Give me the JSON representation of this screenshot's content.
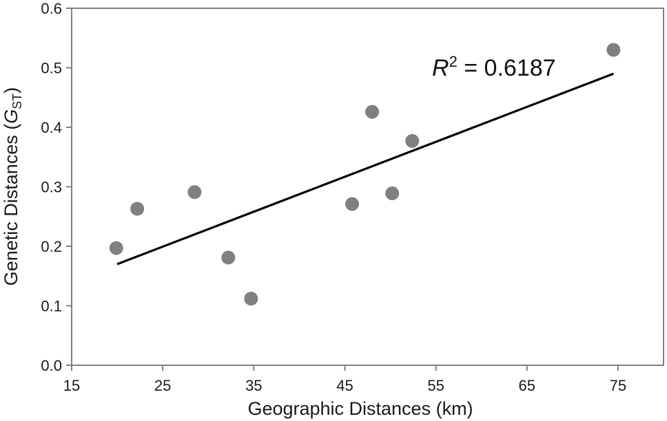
{
  "chart_data": {
    "type": "scatter",
    "xlabel": "Geographic Distances (km)",
    "ylabel": {
      "main": "Genetic Distances (",
      "symbol": "G",
      "subscript": "ST",
      "close": ")"
    },
    "xlim": [
      15,
      80
    ],
    "ylim": [
      0.0,
      0.6
    ],
    "xticks": [
      15,
      25,
      35,
      45,
      55,
      65,
      75
    ],
    "yticks": [
      "0.0",
      "0.1",
      "0.2",
      "0.3",
      "0.4",
      "0.5",
      "0.6"
    ],
    "grid": false,
    "points": [
      {
        "x": 19.9,
        "y": 0.197
      },
      {
        "x": 22.2,
        "y": 0.263
      },
      {
        "x": 28.5,
        "y": 0.291
      },
      {
        "x": 32.2,
        "y": 0.181
      },
      {
        "x": 34.7,
        "y": 0.112
      },
      {
        "x": 45.8,
        "y": 0.271
      },
      {
        "x": 48.0,
        "y": 0.426
      },
      {
        "x": 50.2,
        "y": 0.289
      },
      {
        "x": 52.4,
        "y": 0.377
      },
      {
        "x": 74.5,
        "y": 0.53
      }
    ],
    "trendline": {
      "x": [
        20.0,
        74.5
      ],
      "y": [
        0.17,
        0.49
      ]
    },
    "annotation": {
      "symbol": "R",
      "superscript": "2",
      "text": " = 0.6187"
    },
    "colors": {
      "points": "#808080",
      "trendline": "#000000",
      "axes": "#808080",
      "text": "#1a1a1a"
    }
  }
}
